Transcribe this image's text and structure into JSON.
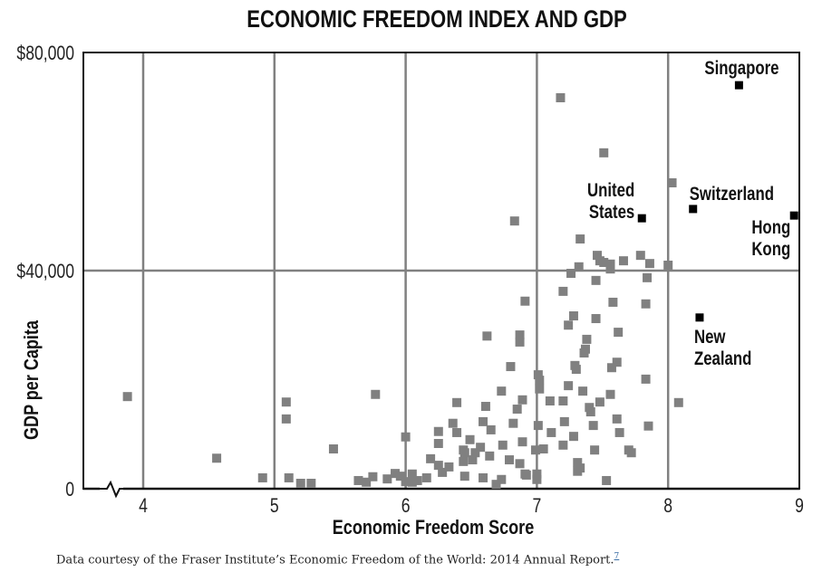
{
  "chart_data": {
    "type": "scatter",
    "title": "ECONOMIC FREEDOM INDEX AND GDP",
    "xlabel": "Economic Freedom Score",
    "ylabel": "GDP per Capita",
    "xlim": [
      3.55,
      9
    ],
    "ylim": [
      0,
      80000
    ],
    "x_ticks": [
      4,
      5,
      6,
      7,
      8,
      9
    ],
    "x_tick_labels": [
      "4",
      "5",
      "6",
      "7",
      "8",
      "9"
    ],
    "y_ticks": [
      0,
      40000,
      80000
    ],
    "y_tick_labels": [
      "0",
      "$40,000",
      "$80,000"
    ],
    "grid": true,
    "colors": {
      "points": "#808080",
      "highlight": "#000000",
      "grid": "#808080"
    },
    "points": [
      [
        3.88,
        16900
      ],
      [
        4.56,
        5600
      ],
      [
        4.91,
        2000
      ],
      [
        5.09,
        15900
      ],
      [
        5.09,
        12800
      ],
      [
        5.11,
        2000
      ],
      [
        5.2,
        1000
      ],
      [
        5.28,
        1000
      ],
      [
        5.45,
        7300
      ],
      [
        5.64,
        1500
      ],
      [
        5.7,
        1200
      ],
      [
        5.75,
        2200
      ],
      [
        5.77,
        17300
      ],
      [
        5.86,
        1800
      ],
      [
        5.92,
        2800
      ],
      [
        5.96,
        2300
      ],
      [
        6.0,
        9500
      ],
      [
        6.0,
        1300
      ],
      [
        6.05,
        2700
      ],
      [
        6.05,
        1200
      ],
      [
        6.09,
        1500
      ],
      [
        6.16,
        2000
      ],
      [
        6.19,
        5500
      ],
      [
        6.25,
        4300
      ],
      [
        6.25,
        10500
      ],
      [
        6.25,
        8300
      ],
      [
        6.28,
        3000
      ],
      [
        6.33,
        4000
      ],
      [
        6.36,
        12000
      ],
      [
        6.39,
        10300
      ],
      [
        6.39,
        15800
      ],
      [
        6.44,
        7100
      ],
      [
        6.45,
        6600
      ],
      [
        6.44,
        5000
      ],
      [
        6.45,
        2300
      ],
      [
        6.49,
        9000
      ],
      [
        6.51,
        5300
      ],
      [
        6.53,
        6600
      ],
      [
        6.57,
        7600
      ],
      [
        6.59,
        2000
      ],
      [
        6.61,
        15100
      ],
      [
        6.59,
        12300
      ],
      [
        6.65,
        10800
      ],
      [
        6.64,
        6000
      ],
      [
        6.62,
        28000
      ],
      [
        6.69,
        800
      ],
      [
        6.73,
        17900
      ],
      [
        6.74,
        8000
      ],
      [
        6.73,
        1700
      ],
      [
        6.79,
        5300
      ],
      [
        6.82,
        12000
      ],
      [
        6.89,
        16300
      ],
      [
        6.85,
        14600
      ],
      [
        6.83,
        49100
      ],
      [
        6.8,
        22400
      ],
      [
        6.87,
        28200
      ],
      [
        6.87,
        26900
      ],
      [
        6.91,
        34400
      ],
      [
        6.87,
        4600
      ],
      [
        6.89,
        8600
      ],
      [
        6.91,
        2700
      ],
      [
        6.92,
        2500
      ],
      [
        6.99,
        7100
      ],
      [
        7.01,
        20900
      ],
      [
        7.02,
        19900
      ],
      [
        7.02,
        18300
      ],
      [
        7.01,
        11600
      ],
      [
        7.0,
        2700
      ],
      [
        7.0,
        1700
      ],
      [
        7.05,
        7300
      ],
      [
        7.1,
        16100
      ],
      [
        7.11,
        10300
      ],
      [
        7.18,
        71700
      ],
      [
        7.2,
        36200
      ],
      [
        7.2,
        16100
      ],
      [
        7.21,
        12300
      ],
      [
        7.2,
        8000
      ],
      [
        7.26,
        39500
      ],
      [
        7.24,
        30000
      ],
      [
        7.28,
        31700
      ],
      [
        7.24,
        18900
      ],
      [
        7.28,
        9600
      ],
      [
        7.3,
        21900
      ],
      [
        7.29,
        22600
      ],
      [
        7.32,
        40700
      ],
      [
        7.33,
        45800
      ],
      [
        7.35,
        17900
      ],
      [
        7.36,
        24900
      ],
      [
        7.38,
        27400
      ],
      [
        7.37,
        25600
      ],
      [
        7.4,
        14900
      ],
      [
        7.41,
        14100
      ],
      [
        7.31,
        3200
      ],
      [
        7.33,
        3800
      ],
      [
        7.31,
        4800
      ],
      [
        7.45,
        38200
      ],
      [
        7.45,
        31200
      ],
      [
        7.43,
        11600
      ],
      [
        7.44,
        7100
      ],
      [
        7.48,
        15900
      ],
      [
        7.51,
        61600
      ],
      [
        7.53,
        1500
      ],
      [
        7.46,
        42800
      ],
      [
        7.48,
        41800
      ],
      [
        7.51,
        41500
      ],
      [
        7.56,
        41200
      ],
      [
        7.56,
        40300
      ],
      [
        7.58,
        34200
      ],
      [
        7.56,
        17300
      ],
      [
        7.57,
        22200
      ],
      [
        7.61,
        23200
      ],
      [
        7.62,
        28700
      ],
      [
        7.61,
        12800
      ],
      [
        7.63,
        10300
      ],
      [
        7.66,
        41800
      ],
      [
        7.7,
        7100
      ],
      [
        7.72,
        6600
      ],
      [
        7.79,
        42800
      ],
      [
        7.83,
        33900
      ],
      [
        7.84,
        38700
      ],
      [
        7.83,
        20100
      ],
      [
        7.85,
        11500
      ],
      [
        7.86,
        41300
      ],
      [
        8.0,
        41000
      ],
      [
        8.03,
        56100
      ],
      [
        8.08,
        15800
      ]
    ],
    "highlighted": [
      {
        "name": "Singapore",
        "lines": [
          "Singapore"
        ],
        "x": 8.54,
        "y": 74000
      },
      {
        "name": "United States",
        "lines": [
          "United",
          "States"
        ],
        "x": 7.8,
        "y": 49600
      },
      {
        "name": "Switzerland",
        "lines": [
          "Switzerland"
        ],
        "x": 8.19,
        "y": 51300
      },
      {
        "name": "Hong Kong",
        "lines": [
          "Hong",
          "Kong"
        ],
        "x": 8.96,
        "y": 50100
      },
      {
        "name": "New Zealand",
        "lines": [
          "New",
          "Zealand"
        ],
        "x": 8.24,
        "y": 31400
      }
    ]
  },
  "footnote": {
    "text": "Data courtesy of the Fraser Institute’s Economic Freedom of the World: 2014 Annual Report.",
    "ref": "7"
  }
}
